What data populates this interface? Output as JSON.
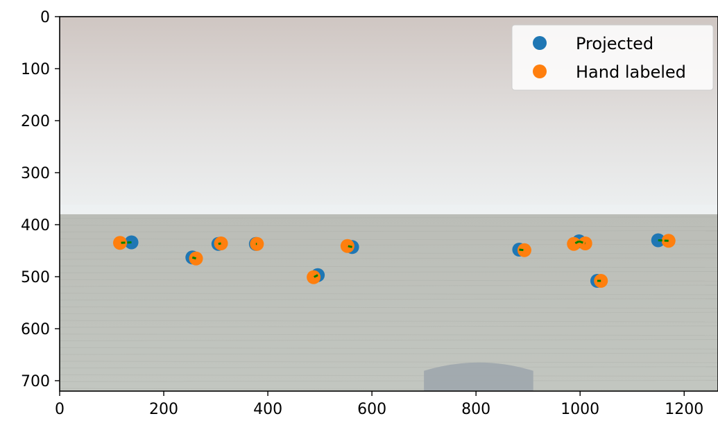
{
  "chart_data": {
    "type": "scatter",
    "background": "camera image of a water surface under a hazy sky with a grey object at the bottom center",
    "xlim": [
      0,
      1265
    ],
    "ylim": [
      720,
      0
    ],
    "x_ticks": [
      0,
      200,
      400,
      600,
      800,
      1000,
      1200
    ],
    "y_ticks": [
      0,
      100,
      200,
      300,
      400,
      500,
      600,
      700
    ],
    "legend": {
      "placement": "top-right",
      "entries": [
        "Projected",
        "Hand labeled"
      ]
    },
    "series": [
      {
        "name": "Projected",
        "color": "#1f77b4",
        "points": [
          {
            "x": 138,
            "y": 434
          },
          {
            "x": 255,
            "y": 463
          },
          {
            "x": 305,
            "y": 437
          },
          {
            "x": 377,
            "y": 437
          },
          {
            "x": 496,
            "y": 497
          },
          {
            "x": 562,
            "y": 443
          },
          {
            "x": 883,
            "y": 448
          },
          {
            "x": 998,
            "y": 432
          },
          {
            "x": 1033,
            "y": 508
          },
          {
            "x": 1150,
            "y": 430
          }
        ]
      },
      {
        "name": "Hand labeled",
        "color": "#ff7f0e",
        "points": [
          {
            "x": 116,
            "y": 435
          },
          {
            "x": 262,
            "y": 465
          },
          {
            "x": 310,
            "y": 436
          },
          {
            "x": 379,
            "y": 437
          },
          {
            "x": 488,
            "y": 501
          },
          {
            "x": 553,
            "y": 441
          },
          {
            "x": 893,
            "y": 449
          },
          {
            "x": 988,
            "y": 437
          },
          {
            "x": 1010,
            "y": 436
          },
          {
            "x": 1040,
            "y": 508
          },
          {
            "x": 1170,
            "y": 431
          }
        ]
      }
    ],
    "error_segments": {
      "color": "#008000",
      "pairs": [
        [
          [
            138,
            434
          ],
          [
            116,
            435
          ]
        ],
        [
          [
            255,
            463
          ],
          [
            262,
            465
          ]
        ],
        [
          [
            305,
            437
          ],
          [
            310,
            436
          ]
        ],
        [
          [
            377,
            437
          ],
          [
            379,
            437
          ]
        ],
        [
          [
            496,
            497
          ],
          [
            488,
            501
          ]
        ],
        [
          [
            562,
            443
          ],
          [
            553,
            441
          ]
        ],
        [
          [
            883,
            448
          ],
          [
            893,
            449
          ]
        ],
        [
          [
            998,
            432
          ],
          [
            988,
            437
          ]
        ],
        [
          [
            998,
            432
          ],
          [
            1010,
            436
          ]
        ],
        [
          [
            1033,
            508
          ],
          [
            1040,
            508
          ]
        ],
        [
          [
            1150,
            430
          ],
          [
            1170,
            431
          ]
        ]
      ]
    }
  }
}
